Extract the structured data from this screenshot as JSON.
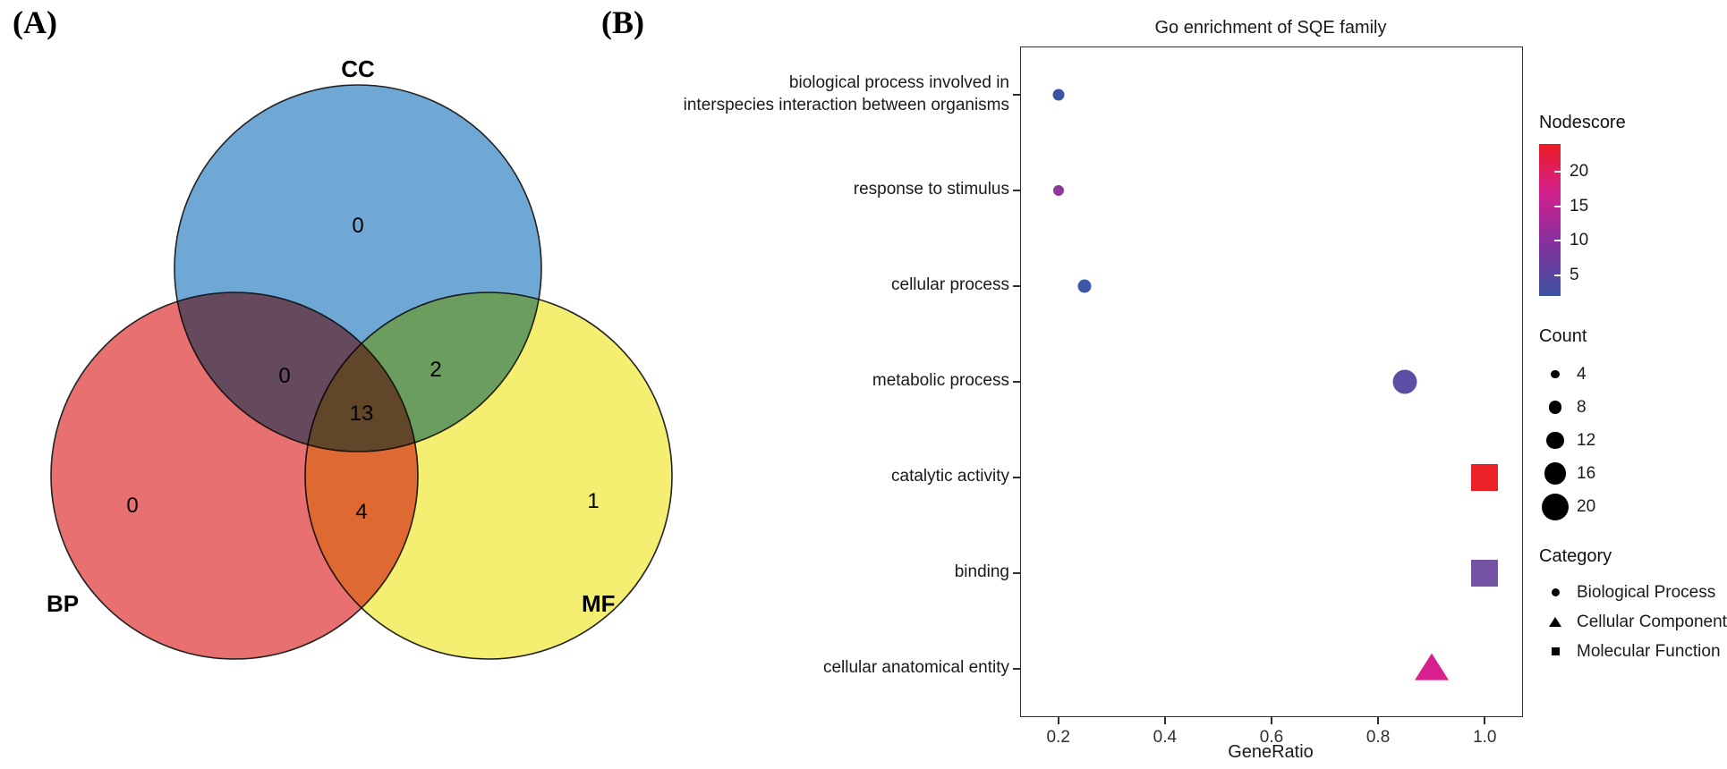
{
  "figure": {
    "panel_a_label": "(A)",
    "panel_b_label": "(B)"
  },
  "venn": {
    "sets": [
      {
        "label": "CC",
        "color": "#6fa8d5"
      },
      {
        "label": "BP",
        "color": "#e87070"
      },
      {
        "label": "MF",
        "color": "#f5ef71"
      }
    ],
    "counts": {
      "cc_only": "0",
      "bp_only": "0",
      "mf_only": "1",
      "cc_bp": "0",
      "cc_mf": "2",
      "bp_mf": "4",
      "all": "13"
    }
  },
  "chart_data": {
    "type": "scatter",
    "title": "Go enrichment of SQE family",
    "xlabel": "GeneRatio",
    "xlim": [
      0.13,
      1.07
    ],
    "x_ticks": [
      0.2,
      0.4,
      0.6,
      0.8,
      1.0
    ],
    "grid": false,
    "categories": [
      "biological process involved in\ninterspecies interaction between organisms",
      "response to stimulus",
      "cellular process",
      "metabolic process",
      "catalytic activity",
      "binding",
      "cellular anatomical entity"
    ],
    "points": [
      {
        "label": "biological process involved in interspecies interaction between organisms",
        "gene_ratio": 0.2,
        "count": 4,
        "nodescore": 3,
        "category": "Biological Process",
        "shape": "circle",
        "color": "#3a53a3",
        "size": 13
      },
      {
        "label": "response to stimulus",
        "gene_ratio": 0.2,
        "count": 4,
        "nodescore": 8,
        "category": "Biological Process",
        "shape": "circle",
        "color": "#8c3a98",
        "size": 12
      },
      {
        "label": "cellular process",
        "gene_ratio": 0.25,
        "count": 5,
        "nodescore": 4,
        "category": "Biological Process",
        "shape": "circle",
        "color": "#3c56a8",
        "size": 15
      },
      {
        "label": "metabolic process",
        "gene_ratio": 0.85,
        "count": 12,
        "nodescore": 5,
        "category": "Biological Process",
        "shape": "circle",
        "color": "#5c4ea3",
        "size": 27
      },
      {
        "label": "catalytic activity",
        "gene_ratio": 1.0,
        "count": 13,
        "nodescore": 22,
        "category": "Molecular Function",
        "shape": "square",
        "color": "#ec2127",
        "size": 30
      },
      {
        "label": "binding",
        "gene_ratio": 1.0,
        "count": 13,
        "nodescore": 7,
        "category": "Molecular Function",
        "shape": "square",
        "color": "#7452a4",
        "size": 30
      },
      {
        "label": "cellular anatomical entity",
        "gene_ratio": 0.9,
        "count": 13,
        "nodescore": 12,
        "category": "Cellular Component",
        "shape": "triangle",
        "color": "#d81f8e",
        "size": 30
      }
    ],
    "legend": {
      "nodescore": {
        "title": "Nodescore",
        "ticks": [
          20,
          15,
          10,
          5
        ],
        "min": 2,
        "max": 24,
        "gradient": [
          {
            "color": "#ed1c24",
            "pos": 0
          },
          {
            "color": "#d2208f",
            "pos": 32
          },
          {
            "color": "#84309e",
            "pos": 66
          },
          {
            "color": "#3c53a2",
            "pos": 100
          }
        ]
      },
      "count": {
        "title": "Count",
        "items": [
          4,
          8,
          12,
          16,
          20
        ]
      },
      "category": {
        "title": "Category",
        "items": [
          {
            "label": "Biological Process",
            "shape": "circle"
          },
          {
            "label": "Cellular Component",
            "shape": "triangle"
          },
          {
            "label": "Molecular Function",
            "shape": "square"
          }
        ]
      }
    }
  }
}
